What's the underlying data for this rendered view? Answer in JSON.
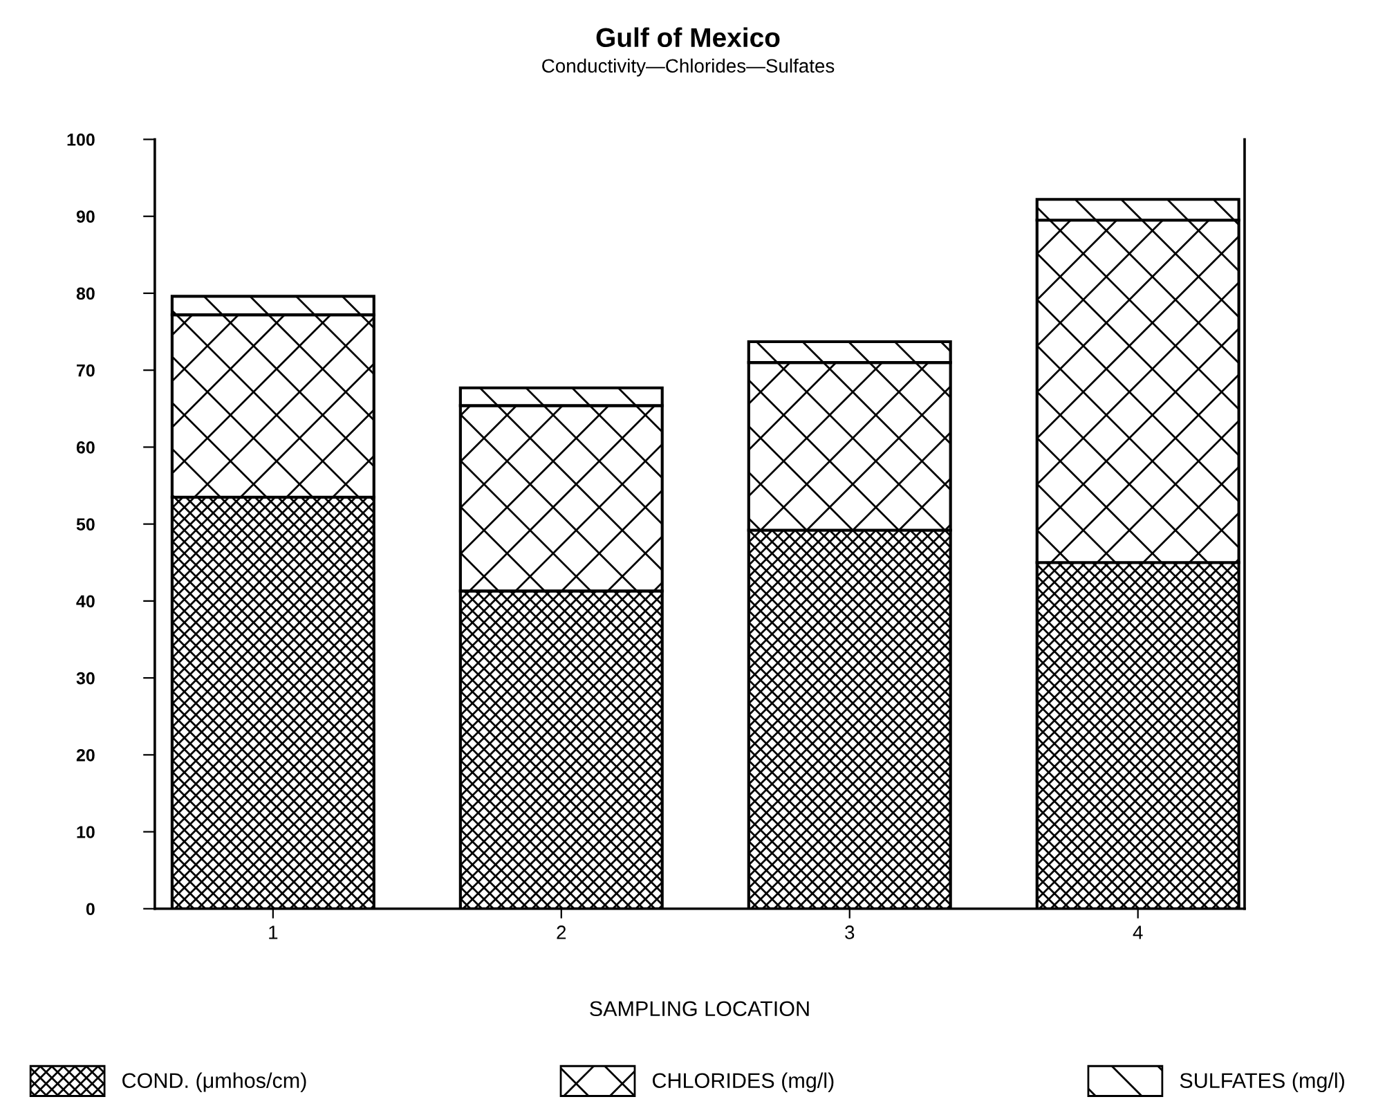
{
  "chart_data": {
    "type": "bar",
    "title": "Gulf of Mexico",
    "subtitle": "Conductivity—Chlorides—Sulfates",
    "xlabel": "SAMPLING LOCATION",
    "categories": [
      "1",
      "2",
      "3",
      "4"
    ],
    "stacked": true,
    "series": [
      {
        "name": "COND. (μmhos/cm)",
        "color": "#000000",
        "values": [
          53.5,
          41.3,
          49.2,
          45.0
        ]
      },
      {
        "name": "CHLORIDES (mg/l)",
        "color": "#000000",
        "values": [
          23.7,
          24.1,
          21.8,
          44.5
        ]
      },
      {
        "name": "SULFATES (mg/l)",
        "color": "#000000",
        "values": [
          2.4,
          2.3,
          2.7,
          2.7
        ]
      }
    ],
    "ylim": [
      0,
      100
    ],
    "yticks": [
      0,
      10,
      20,
      30,
      40,
      50,
      60,
      70,
      80,
      90,
      100
    ],
    "grid": false,
    "legend": "bottom"
  }
}
